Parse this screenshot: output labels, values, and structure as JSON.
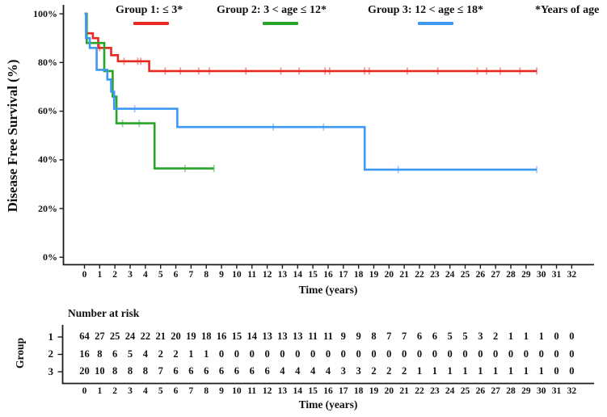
{
  "legend": {
    "items": [
      {
        "label": "Group 1: ≤ 3*"
      },
      {
        "label": "Group 2: 3 < age ≤ 12*"
      },
      {
        "label": "Group 3: 12 < age ≤ 18*"
      }
    ],
    "note": "*Years of age"
  },
  "chart_data": {
    "type": "line",
    "subtype": "kaplan_meier_step_survival",
    "title": "",
    "xlabel": "Time (years)",
    "ylabel": "Disease Free Survival (%)",
    "xlim": [
      0,
      32
    ],
    "ylim": [
      0,
      100
    ],
    "grid": false,
    "legend_position": "top",
    "xticks": [
      0,
      1,
      2,
      3,
      4,
      5,
      6,
      7,
      8,
      9,
      10,
      11,
      12,
      13,
      14,
      15,
      16,
      17,
      18,
      19,
      20,
      21,
      22,
      23,
      24,
      25,
      26,
      27,
      28,
      29,
      30,
      31,
      32
    ],
    "yticks": [
      {
        "label": "0%",
        "value": 0
      },
      {
        "label": "20%",
        "value": 20
      },
      {
        "label": "40%",
        "value": 40
      },
      {
        "label": "60%",
        "value": 60
      },
      {
        "label": "80%",
        "value": 80
      },
      {
        "label": "100%",
        "value": 100
      }
    ],
    "series": [
      {
        "name": "Group 1: ≤ 3*",
        "group": "1",
        "color": "#e8291f",
        "steps": [
          [
            0,
            100
          ],
          [
            0.12,
            92
          ],
          [
            0.55,
            90
          ],
          [
            0.9,
            86
          ],
          [
            1.75,
            83
          ],
          [
            2.2,
            80.5
          ],
          [
            4.25,
            76.5
          ]
        ],
        "end_time": 29.7,
        "censor_marks": [
          [
            1.0,
            86
          ],
          [
            2.6,
            80.5
          ],
          [
            3.5,
            80.5
          ],
          [
            3.7,
            80.5
          ],
          [
            5.3,
            76.5
          ],
          [
            6.3,
            76.5
          ],
          [
            7.5,
            76.5
          ],
          [
            8.2,
            76.5
          ],
          [
            10.6,
            76.5
          ],
          [
            12.9,
            76.5
          ],
          [
            14.1,
            76.5
          ],
          [
            15.8,
            76.5
          ],
          [
            16.1,
            76.5
          ],
          [
            18.4,
            76.5
          ],
          [
            18.7,
            76.5
          ],
          [
            21.2,
            76.5
          ],
          [
            23.2,
            76.5
          ],
          [
            25.8,
            76.5
          ],
          [
            26.4,
            76.5
          ],
          [
            27.3,
            76.5
          ],
          [
            28.6,
            76.5
          ],
          [
            29.7,
            76.5
          ]
        ]
      },
      {
        "name": "Group 2: 3 < age ≤ 12*",
        "group": "2",
        "color": "#28a428",
        "steps": [
          [
            0,
            100
          ],
          [
            0.15,
            88
          ],
          [
            1.3,
            76.5
          ],
          [
            1.85,
            66
          ],
          [
            2.1,
            55
          ],
          [
            4.6,
            36.5
          ]
        ],
        "end_time": 8.5,
        "censor_marks": [
          [
            2.5,
            55
          ],
          [
            3.6,
            55
          ],
          [
            6.6,
            36.5
          ],
          [
            8.5,
            36.5
          ]
        ]
      },
      {
        "name": "Group 3: 12 < age ≤ 18*",
        "group": "3",
        "color": "#3d99f2",
        "steps": [
          [
            0,
            100
          ],
          [
            0.1,
            90
          ],
          [
            0.35,
            86
          ],
          [
            0.8,
            77
          ],
          [
            1.5,
            73
          ],
          [
            1.75,
            68
          ],
          [
            1.95,
            61
          ],
          [
            6.1,
            53.5
          ],
          [
            18.4,
            36
          ]
        ],
        "end_time": 29.7,
        "censor_marks": [
          [
            3.3,
            61
          ],
          [
            12.4,
            53.5
          ],
          [
            15.7,
            53.5
          ],
          [
            20.6,
            36
          ],
          [
            29.7,
            36
          ]
        ]
      }
    ],
    "number_at_risk": {
      "title": "Number at risk",
      "row_axis_label": "Group",
      "xlabel": "Time (years)",
      "times": [
        0,
        1,
        2,
        3,
        4,
        5,
        6,
        7,
        8,
        9,
        10,
        11,
        12,
        13,
        14,
        15,
        16,
        17,
        18,
        19,
        20,
        21,
        22,
        23,
        24,
        25,
        26,
        27,
        28,
        29,
        30,
        31,
        32
      ],
      "rows": [
        {
          "label": "1",
          "values": [
            64,
            27,
            25,
            24,
            22,
            21,
            20,
            19,
            18,
            16,
            15,
            14,
            13,
            13,
            13,
            11,
            11,
            9,
            9,
            8,
            7,
            7,
            6,
            6,
            5,
            5,
            3,
            2,
            1,
            1,
            1,
            0,
            0
          ]
        },
        {
          "label": "2",
          "values": [
            16,
            8,
            6,
            5,
            4,
            2,
            2,
            1,
            1,
            0,
            0,
            0,
            0,
            0,
            0,
            0,
            0,
            0,
            0,
            0,
            0,
            0,
            0,
            0,
            0,
            0,
            0,
            0,
            0,
            0,
            0,
            0,
            0
          ]
        },
        {
          "label": "3",
          "values": [
            20,
            10,
            8,
            8,
            8,
            7,
            6,
            6,
            6,
            6,
            6,
            6,
            6,
            4,
            4,
            4,
            4,
            3,
            3,
            2,
            2,
            2,
            1,
            1,
            1,
            1,
            1,
            1,
            1,
            1,
            1,
            0,
            0
          ]
        }
      ]
    },
    "colors": {
      "group1": "#e8291f",
      "group2": "#28a428",
      "group3": "#3d99f2",
      "axis": "#1c1c1c"
    }
  }
}
